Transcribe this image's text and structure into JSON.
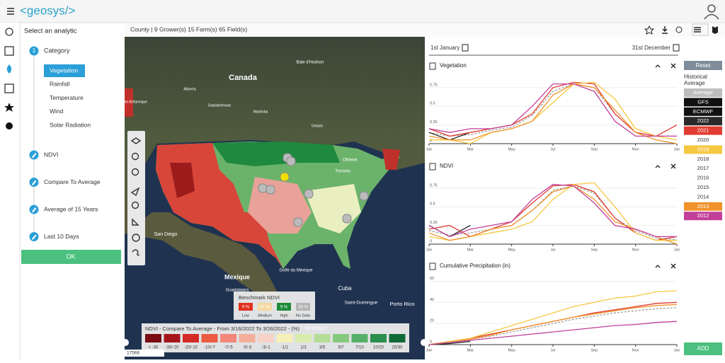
{
  "header": {
    "logo": "<geosys/>"
  },
  "sidebar": {
    "title": "Select an analytic",
    "category": {
      "number": 1,
      "label": "Category",
      "options": [
        {
          "label": "Vegetation",
          "selected": true
        },
        {
          "label": "Rainfall",
          "selected": false
        },
        {
          "label": "Temperature",
          "selected": false
        },
        {
          "label": "Wind",
          "selected": false
        },
        {
          "label": "Solar Radiation",
          "selected": false
        }
      ]
    },
    "steps": [
      "NDVI",
      "Compare To Average",
      "Average of 15 Years",
      "Last 10 Days"
    ],
    "ok": "OK"
  },
  "toolbar": {
    "breadcrumb": "County | 9 Grower(s) 15 Farm(s) 65 Field(s)"
  },
  "map": {
    "labels": [
      "Canada",
      "Baie d'Hudson",
      "Alberta",
      "Colombie-Britannique",
      "Saskatchewan",
      "Manitoba",
      "Ontario",
      "Ottawa",
      "Toronto",
      "San Diego",
      "Mexique",
      "Golfe du Mexique",
      "Guadalajara",
      "Cuba",
      "Saint-Domingue",
      "Porto Rico",
      "Nicaragua"
    ],
    "scale": "17566",
    "benchmark": {
      "title": "Benchmark NDVI",
      "items": [
        {
          "label": "9 %",
          "name": "Low",
          "color": "#e0301e"
        },
        {
          "label": "57 %",
          "name": "Medium",
          "color": "#f3d9a0"
        },
        {
          "label": "9 %",
          "name": "High",
          "color": "#1e8b3a"
        },
        {
          "label": "29 %",
          "name": "No Data",
          "color": "#b5b5b5"
        }
      ]
    },
    "legend": {
      "title": "NDVI - Compare To Average - From 3/16/2022 To 3/26/2022 - (%)",
      "classes": [
        {
          "label": "< -30",
          "color": "#7a0c12"
        },
        {
          "label": "-30/-20",
          "color": "#a6151b"
        },
        {
          "label": "-20/-10",
          "color": "#d42a26"
        },
        {
          "label": "-10/-7",
          "color": "#ec5a43"
        },
        {
          "label": "-7/-5",
          "color": "#f3877a"
        },
        {
          "label": "-5/-3",
          "color": "#f5ad9c"
        },
        {
          "label": "-3/-1",
          "color": "#f7d2c6"
        },
        {
          "label": "-1/1",
          "color": "#f6f1b8"
        },
        {
          "label": "1/3",
          "color": "#d8ecae"
        },
        {
          "label": "3/5",
          "color": "#b4dd98"
        },
        {
          "label": "5/7",
          "color": "#86c97e"
        },
        {
          "label": "7/10",
          "color": "#56b06a"
        },
        {
          "label": "10/20",
          "color": "#2a8e4c"
        },
        {
          "label": "20/30",
          "color": "#0f6a35"
        }
      ]
    }
  },
  "dates": {
    "start": "1st January",
    "end": "31st December"
  },
  "charts": [
    {
      "type": "line",
      "title": "Vegetation",
      "xlim": [
        0,
        12
      ],
      "ylim": [
        0,
        0.9
      ],
      "yticks": [
        0,
        0.25,
        0.5,
        0.75
      ],
      "x": [
        0,
        1,
        2,
        3,
        4,
        5,
        6,
        7,
        8,
        9,
        10,
        11,
        12
      ],
      "xticks": [
        {
          "value": 0,
          "label": "Jan"
        },
        {
          "value": 2,
          "label": "Mar"
        },
        {
          "value": 4,
          "label": "May"
        },
        {
          "value": 6,
          "label": "Jul"
        },
        {
          "value": 8,
          "label": "Sep"
        },
        {
          "value": 10,
          "label": "Nov"
        },
        {
          "value": 12,
          "label": "Jan"
        }
      ],
      "series": [
        {
          "name": "Average",
          "color": "#9e9e9e",
          "dashed": true,
          "values": [
            0.15,
            0.1,
            0.12,
            0.18,
            0.22,
            0.38,
            0.7,
            0.8,
            0.75,
            0.4,
            0.15,
            0.1,
            0.1
          ]
        },
        {
          "name": "2022",
          "color": "#222222",
          "values": [
            0.15,
            0.05,
            0.15,
            null,
            null,
            null,
            null,
            null,
            null,
            null,
            null,
            null,
            null
          ]
        },
        {
          "name": "2021",
          "color": "#e03c31",
          "values": [
            0.2,
            0.1,
            0.15,
            0.2,
            0.25,
            0.4,
            0.75,
            0.82,
            0.8,
            0.4,
            0.15,
            0.1,
            0.25
          ]
        },
        {
          "name": "2019",
          "color": "#f5c842",
          "values": [
            0.05,
            0.05,
            0.0,
            0.15,
            0.2,
            0.3,
            0.55,
            0.8,
            0.82,
            0.6,
            0.2,
            0.1,
            0.05
          ]
        },
        {
          "name": "2013",
          "color": "#f0932b",
          "values": [
            0.1,
            0.05,
            0.05,
            0.15,
            0.2,
            0.3,
            0.65,
            0.8,
            0.75,
            0.45,
            0.15,
            0.05,
            0.0
          ]
        },
        {
          "name": "2012",
          "color": "#c2409a",
          "values": [
            0.2,
            0.15,
            0.2,
            0.2,
            0.25,
            0.5,
            0.8,
            0.8,
            0.7,
            0.3,
            0.1,
            0.1,
            0.1
          ]
        }
      ]
    },
    {
      "type": "line",
      "title": "NDVI",
      "xlim": [
        0,
        12
      ],
      "ylim": [
        0,
        0.9
      ],
      "yticks": [
        0,
        0.25,
        0.5,
        0.75
      ],
      "x": [
        0,
        1,
        2,
        3,
        4,
        5,
        6,
        7,
        8,
        9,
        10,
        11,
        12
      ],
      "xticks": [
        {
          "value": 0,
          "label": "Jan"
        },
        {
          "value": 2,
          "label": "Mar"
        },
        {
          "value": 4,
          "label": "May"
        },
        {
          "value": 6,
          "label": "Jul"
        },
        {
          "value": 8,
          "label": "Sep"
        },
        {
          "value": 10,
          "label": "Nov"
        },
        {
          "value": 12,
          "label": "Jan"
        }
      ],
      "series": [
        {
          "name": "Average",
          "color": "#9e9e9e",
          "dashed": true,
          "values": [
            0.18,
            0.12,
            0.15,
            0.2,
            0.25,
            0.45,
            0.72,
            0.78,
            0.68,
            0.35,
            0.18,
            0.08,
            0.06
          ]
        },
        {
          "name": "2022",
          "color": "#222222",
          "values": [
            0.25,
            0.1,
            0.25,
            null,
            null,
            null,
            null,
            null,
            null,
            null,
            null,
            null,
            null
          ]
        },
        {
          "name": "2021",
          "color": "#e03c31",
          "values": [
            0.2,
            0.25,
            0.1,
            0.2,
            0.3,
            0.55,
            0.78,
            0.8,
            0.7,
            0.35,
            0.15,
            0.05,
            0.1
          ]
        },
        {
          "name": "2019",
          "color": "#f5c842",
          "values": [
            0.1,
            0.05,
            0.1,
            0.15,
            0.2,
            0.3,
            0.6,
            0.8,
            0.82,
            0.5,
            0.15,
            0.05,
            0.05
          ]
        },
        {
          "name": "2013",
          "color": "#f0932b",
          "values": [
            0.15,
            0.05,
            0.1,
            0.2,
            0.25,
            0.45,
            0.7,
            0.78,
            0.6,
            0.3,
            0.2,
            0.1,
            0.0
          ]
        },
        {
          "name": "2012",
          "color": "#c2409a",
          "values": [
            0.25,
            0.1,
            0.2,
            0.25,
            0.3,
            0.6,
            0.8,
            0.78,
            0.55,
            0.25,
            0.2,
            0.1,
            0.1
          ]
        }
      ]
    },
    {
      "type": "line",
      "title": "Cumulative Precipitation (in)",
      "xlim": [
        0,
        12
      ],
      "ylim": [
        0,
        65
      ],
      "yticks": [
        0,
        20,
        40,
        60
      ],
      "x": [
        0,
        1,
        2,
        3,
        4,
        5,
        6,
        7,
        8,
        9,
        10,
        11,
        12
      ],
      "xticks": [
        {
          "value": 0,
          "label": "Jan"
        },
        {
          "value": 2,
          "label": "Mar"
        },
        {
          "value": 4,
          "label": "May"
        },
        {
          "value": 6,
          "label": "Jul"
        },
        {
          "value": 8,
          "label": "Sep"
        },
        {
          "value": 10,
          "label": "Nov"
        },
        {
          "value": 12,
          "label": "Jan"
        }
      ],
      "series": [
        {
          "name": "Average",
          "color": "#9e9e9e",
          "dashed": true,
          "values": [
            0,
            2,
            5,
            8,
            12,
            16,
            20,
            24,
            27,
            30,
            32,
            34,
            35
          ]
        },
        {
          "name": "2022",
          "color": "#222222",
          "values": [
            0,
            1,
            3,
            null,
            null,
            null,
            null,
            null,
            null,
            null,
            null,
            null,
            null
          ]
        },
        {
          "name": "2021",
          "color": "#e03c31",
          "values": [
            0,
            3,
            6,
            10,
            14,
            18,
            22,
            26,
            30,
            33,
            36,
            39,
            40
          ]
        },
        {
          "name": "2019",
          "color": "#f5c842",
          "values": [
            0,
            3,
            6,
            12,
            18,
            24,
            30,
            36,
            40,
            44,
            46,
            50,
            51
          ]
        },
        {
          "name": "2013",
          "color": "#f0932b",
          "values": [
            0,
            2,
            5,
            9,
            14,
            18,
            22,
            26,
            29,
            32,
            35,
            37,
            38
          ]
        },
        {
          "name": "2012",
          "color": "#c2409a",
          "values": [
            0,
            2,
            4,
            6,
            8,
            10,
            12,
            14,
            16,
            18,
            19,
            21,
            22
          ]
        }
      ]
    }
  ],
  "historical": {
    "reset": "Reset",
    "title": "Historical Average",
    "items": [
      {
        "label": "Average",
        "color": "#bdbdbd"
      },
      {
        "label": "GFS",
        "color": "#111111"
      },
      {
        "label": "ECMWF",
        "color": "#111111"
      },
      {
        "label": "2022",
        "color": "#2a2a2a"
      },
      {
        "label": "2021",
        "color": "#e03c31"
      },
      {
        "label": "2020",
        "color": "#ffffff"
      },
      {
        "label": "2019",
        "color": "#f5c842"
      },
      {
        "label": "2018",
        "color": "#ffffff"
      },
      {
        "label": "2017",
        "color": "#ffffff"
      },
      {
        "label": "2016",
        "color": "#ffffff"
      },
      {
        "label": "2015",
        "color": "#ffffff"
      },
      {
        "label": "2014",
        "color": "#ffffff"
      },
      {
        "label": "2013",
        "color": "#f0932b"
      },
      {
        "label": "2012",
        "color": "#c2409a"
      }
    ],
    "add": "ADD"
  }
}
